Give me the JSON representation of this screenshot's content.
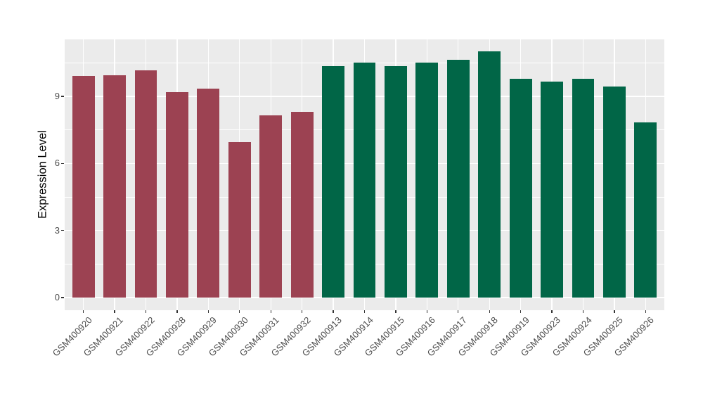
{
  "figure": {
    "background": "#FFFFFF",
    "panel_background": "#EBEBEB",
    "grid_color": "#FFFFFF",
    "tick_color": "#333333",
    "tick_label_color": "#4D4D4D",
    "axis_title_color": "#000000"
  },
  "chart_data": {
    "type": "bar",
    "title": "",
    "xlabel": "",
    "ylabel": "Expression Level",
    "ylim": [
      -0.55,
      11.55
    ],
    "yticks": [
      0,
      3,
      6,
      9
    ],
    "minor_yticks": [
      1.5,
      4.5,
      7.5,
      10.5
    ],
    "grid": "major+minor, white on gray panel",
    "legend_position": "none",
    "group_colors": {
      "maroon": "#9C4252",
      "green": "#016647"
    },
    "bars": [
      {
        "label": "GSM400920",
        "value": 9.9,
        "group": "maroon"
      },
      {
        "label": "GSM400921",
        "value": 9.95,
        "group": "maroon"
      },
      {
        "label": "GSM400922",
        "value": 10.15,
        "group": "maroon"
      },
      {
        "label": "GSM400928",
        "value": 9.2,
        "group": "maroon"
      },
      {
        "label": "GSM400929",
        "value": 9.35,
        "group": "maroon"
      },
      {
        "label": "GSM400930",
        "value": 6.95,
        "group": "maroon"
      },
      {
        "label": "GSM400931",
        "value": 8.15,
        "group": "maroon"
      },
      {
        "label": "GSM400932",
        "value": 8.3,
        "group": "maroon"
      },
      {
        "label": "GSM400913",
        "value": 10.35,
        "group": "green"
      },
      {
        "label": "GSM400914",
        "value": 10.5,
        "group": "green"
      },
      {
        "label": "GSM400915",
        "value": 10.35,
        "group": "green"
      },
      {
        "label": "GSM400916",
        "value": 10.5,
        "group": "green"
      },
      {
        "label": "GSM400917",
        "value": 10.65,
        "group": "green"
      },
      {
        "label": "GSM400918",
        "value": 11.0,
        "group": "green"
      },
      {
        "label": "GSM400919",
        "value": 9.8,
        "group": "green"
      },
      {
        "label": "GSM400923",
        "value": 9.65,
        "group": "green"
      },
      {
        "label": "GSM400924",
        "value": 9.8,
        "group": "green"
      },
      {
        "label": "GSM400925",
        "value": 9.45,
        "group": "green"
      },
      {
        "label": "GSM400926",
        "value": 7.85,
        "group": "green"
      }
    ]
  }
}
